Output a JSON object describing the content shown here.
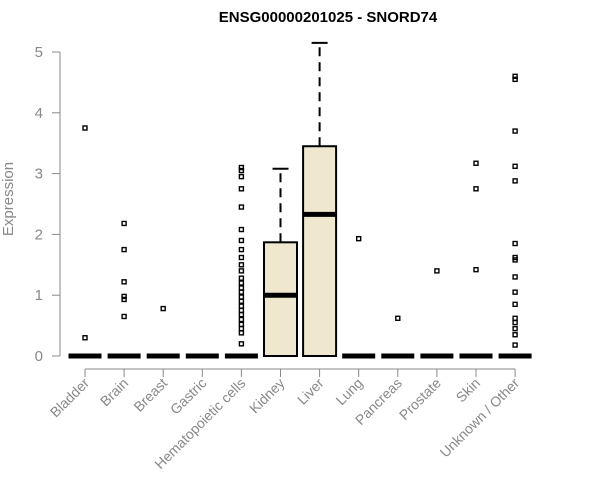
{
  "chart_data": {
    "type": "box",
    "title": "ENSG00000201025 - SNORD74",
    "ylabel": "Expression",
    "xlabel": "",
    "ylim": [
      0,
      5
    ],
    "yticks": [
      0,
      1,
      2,
      3,
      4,
      5
    ],
    "grid": false,
    "box_color": "#efe8cf",
    "categories": [
      "Bladder",
      "Brain",
      "Breast",
      "Gastric",
      "Hematopoietic cells",
      "Kidney",
      "Liver",
      "Lung",
      "Pancreas",
      "Prostate",
      "Skin",
      "Unknown / Other"
    ],
    "boxes": [
      {
        "category": "Bladder",
        "q1": 0,
        "median": 0,
        "q3": 0,
        "whisker_low": 0,
        "whisker_high": 0,
        "outliers": [
          0.3,
          3.75
        ]
      },
      {
        "category": "Brain",
        "q1": 0,
        "median": 0,
        "q3": 0,
        "whisker_low": 0,
        "whisker_high": 0,
        "outliers": [
          0.65,
          0.93,
          0.98,
          1.22,
          1.75,
          2.18
        ]
      },
      {
        "category": "Breast",
        "q1": 0,
        "median": 0,
        "q3": 0,
        "whisker_low": 0,
        "whisker_high": 0,
        "outliers": [
          0.78
        ]
      },
      {
        "category": "Gastric",
        "q1": 0,
        "median": 0,
        "q3": 0,
        "whisker_low": 0,
        "whisker_high": 0,
        "outliers": []
      },
      {
        "category": "Hematopoietic cells",
        "q1": 0,
        "median": 0,
        "q3": 0,
        "whisker_low": 0,
        "whisker_high": 0,
        "outliers": [
          0.2,
          0.38,
          0.45,
          0.52,
          0.6,
          0.68,
          0.75,
          0.82,
          0.9,
          0.97,
          1.05,
          1.12,
          1.2,
          1.28,
          1.4,
          1.5,
          1.62,
          1.75,
          1.9,
          2.08,
          2.45,
          2.75,
          2.95,
          3.05,
          3.1
        ]
      },
      {
        "category": "Kidney",
        "q1": 0,
        "median": 1.0,
        "q3": 1.87,
        "whisker_low": 0,
        "whisker_high": 3.08,
        "outliers": []
      },
      {
        "category": "Liver",
        "q1": 0,
        "median": 2.33,
        "q3": 3.45,
        "whisker_low": 0,
        "whisker_high": 5.15,
        "outliers": []
      },
      {
        "category": "Lung",
        "q1": 0,
        "median": 0,
        "q3": 0,
        "whisker_low": 0,
        "whisker_high": 0,
        "outliers": [
          1.93
        ]
      },
      {
        "category": "Pancreas",
        "q1": 0,
        "median": 0,
        "q3": 0,
        "whisker_low": 0,
        "whisker_high": 0,
        "outliers": [
          0.62
        ]
      },
      {
        "category": "Prostate",
        "q1": 0,
        "median": 0,
        "q3": 0,
        "whisker_low": 0,
        "whisker_high": 0,
        "outliers": [
          1.4
        ]
      },
      {
        "category": "Skin",
        "q1": 0,
        "median": 0,
        "q3": 0,
        "whisker_low": 0,
        "whisker_high": 0,
        "outliers": [
          1.42,
          2.75,
          3.17
        ]
      },
      {
        "category": "Unknown / Other",
        "q1": 0,
        "median": 0,
        "q3": 0,
        "whisker_low": 0,
        "whisker_high": 0,
        "outliers": [
          0.18,
          0.35,
          0.45,
          0.55,
          0.62,
          0.85,
          1.05,
          1.3,
          1.58,
          1.62,
          1.85,
          2.88,
          3.12,
          3.7,
          4.55,
          4.6
        ]
      }
    ]
  }
}
